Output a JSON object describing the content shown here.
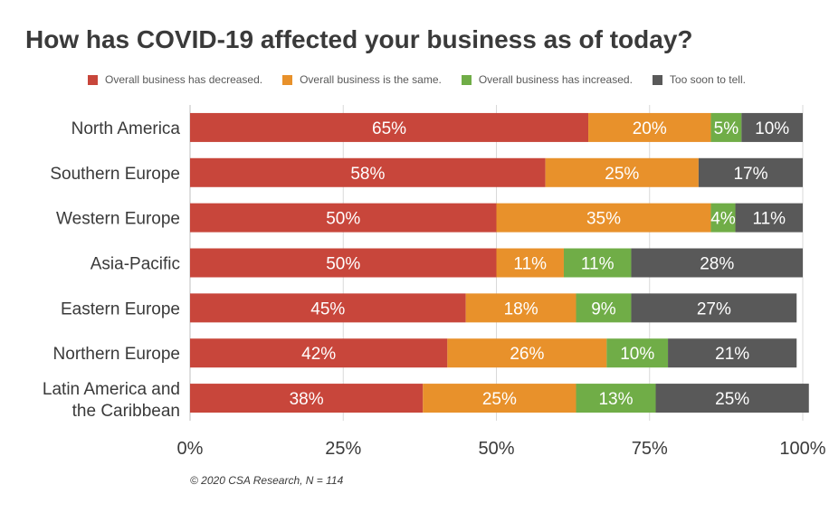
{
  "chart_data": {
    "type": "bar",
    "orientation": "horizontal",
    "stacked": true,
    "title": "How has COVID-19 affected your business as of today?",
    "categories": [
      "North America",
      "Southern Europe",
      "Western Europe",
      "Asia-Pacific",
      "Eastern Europe",
      "Northern Europe",
      "Latin America and the Caribbean"
    ],
    "series": [
      {
        "name": "Overall business has decreased.",
        "color": "#c8463b",
        "values": [
          65,
          58,
          50,
          50,
          45,
          42,
          38
        ]
      },
      {
        "name": "Overall business is the same.",
        "color": "#e8912b",
        "values": [
          20,
          25,
          35,
          11,
          18,
          26,
          25
        ]
      },
      {
        "name": "Overall business has increased.",
        "color": "#70ad47",
        "values": [
          5,
          0,
          4,
          11,
          9,
          10,
          13
        ]
      },
      {
        "name": "Too soon to tell.",
        "color": "#595959",
        "values": [
          10,
          17,
          11,
          28,
          27,
          21,
          25
        ]
      }
    ],
    "xlim": [
      0,
      100
    ],
    "xticks": [
      "0%",
      "25%",
      "50%",
      "75%",
      "100%"
    ],
    "value_suffix": "%",
    "grid": true,
    "legend_position": "top",
    "footnote": "© 2020 CSA Research, N = 114"
  }
}
